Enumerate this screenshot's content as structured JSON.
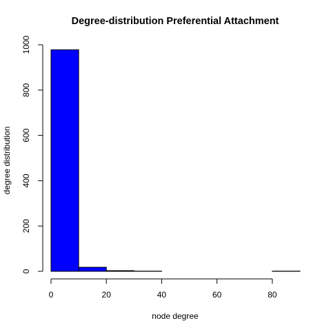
{
  "chart_data": {
    "type": "bar",
    "title": "Degree-distribution Preferential Attachment",
    "xlabel": "node degree",
    "ylabel": "degree distribution",
    "bins": [
      {
        "from": 0,
        "to": 10,
        "count": 978
      },
      {
        "from": 10,
        "to": 20,
        "count": 18
      },
      {
        "from": 20,
        "to": 30,
        "count": 3
      },
      {
        "from": 30,
        "to": 40,
        "count": 1
      },
      {
        "from": 40,
        "to": 50,
        "count": 0
      },
      {
        "from": 50,
        "to": 60,
        "count": 0
      },
      {
        "from": 60,
        "to": 70,
        "count": 0
      },
      {
        "from": 70,
        "to": 80,
        "count": 0
      },
      {
        "from": 80,
        "to": 90,
        "count": 1
      }
    ],
    "xlim": [
      0,
      90
    ],
    "ylim": [
      0,
      1000
    ],
    "xticks": [
      0,
      20,
      40,
      60,
      80
    ],
    "yticks": [
      0,
      200,
      400,
      600,
      800,
      1000
    ],
    "bar_color": "#0000ff",
    "grid": false,
    "legend": "none"
  }
}
